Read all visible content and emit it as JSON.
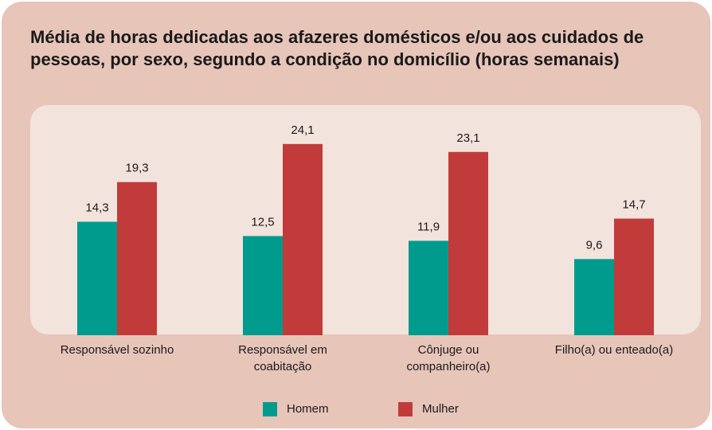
{
  "chart_data": {
    "type": "bar",
    "title": "Média de horas dedicadas aos afazeres domésticos e/ou aos cuidados de pessoas, por sexo, segundo a condição no domicílio (horas semanais)",
    "categories": [
      "Responsável sozinho",
      "Responsável em coabitação",
      "Cônjuge ou companheiro(a)",
      "Filho(a) ou enteado(a)"
    ],
    "series": [
      {
        "name": "Homem",
        "color": "#009b8d",
        "values": [
          14.3,
          12.5,
          11.9,
          9.6
        ],
        "value_labels": [
          "14,3",
          "12,5",
          "11,9",
          "9,6"
        ]
      },
      {
        "name": "Mulher",
        "color": "#c23b3b",
        "values": [
          19.3,
          24.1,
          23.1,
          14.7
        ],
        "value_labels": [
          "19,3",
          "24,1",
          "23,1",
          "14,7"
        ]
      }
    ],
    "ylim": [
      0,
      29
    ]
  }
}
